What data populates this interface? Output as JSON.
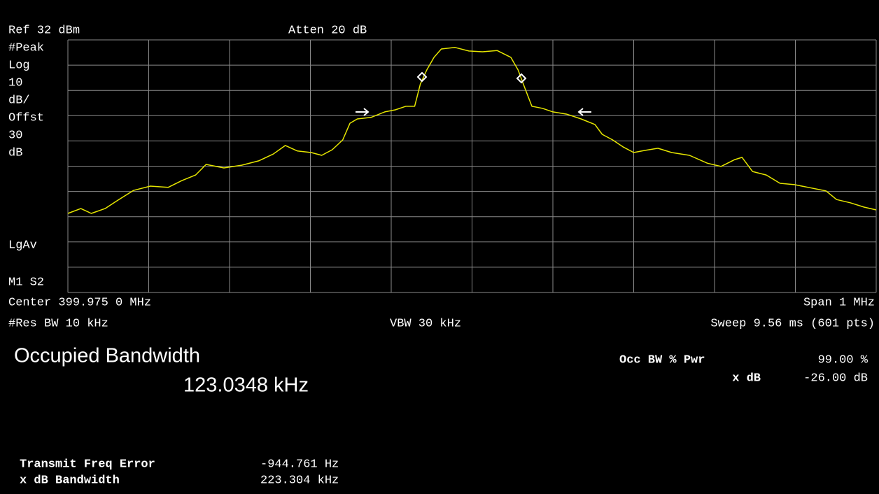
{
  "header": {
    "ref": "Ref 32 dBm",
    "atten": "Atten 20 dB"
  },
  "side_labels": [
    "#Peak",
    "Log",
    "10",
    "dB/",
    "Offst",
    "30",
    "dB"
  ],
  "detector": "LgAv",
  "marker_state": "M1  S2",
  "footer": {
    "center": "Center 399.975 0 MHz",
    "span": "Span 1 MHz",
    "res_bw": "#Res BW 10 kHz",
    "vbw": "VBW 30 kHz",
    "sweep": "Sweep 9.56 ms (601 pts)"
  },
  "measurement": {
    "title": "Occupied Bandwidth",
    "value": "123.0348 kHz",
    "settings": [
      {
        "label": "Occ BW % Pwr",
        "value": "99.00 %"
      },
      {
        "label": "x dB",
        "value": "-26.00 dB"
      }
    ],
    "results": [
      {
        "label": "Transmit Freq Error",
        "value": "-944.761 Hz"
      },
      {
        "label": "x dB Bandwidth",
        "value": "223.304 kHz"
      }
    ]
  },
  "chart_data": {
    "type": "line",
    "color": "#e6e600",
    "xlim": [
      399.475,
      400.475
    ],
    "ylim": [
      -68,
      32
    ],
    "x": [
      399.475,
      399.491,
      399.504,
      399.521,
      399.538,
      399.556,
      399.577,
      399.599,
      399.616,
      399.633,
      399.646,
      399.668,
      399.69,
      399.711,
      399.729,
      399.744,
      399.759,
      399.776,
      399.789,
      399.802,
      399.815,
      399.824,
      399.833,
      399.85,
      399.867,
      399.88,
      399.893,
      399.904,
      399.911,
      399.919,
      399.928,
      399.937,
      399.954,
      399.971,
      399.988,
      400.006,
      400.023,
      400.032,
      400.04,
      400.049,
      400.062,
      400.075,
      400.092,
      400.11,
      400.127,
      400.136,
      400.149,
      400.162,
      400.175,
      400.188,
      400.205,
      400.222,
      400.244,
      400.266,
      400.283,
      400.3,
      400.309,
      400.322,
      400.339,
      400.356,
      400.374,
      400.391,
      400.413,
      400.426,
      400.443,
      400.46,
      400.475
    ],
    "values": [
      -36.7,
      -34.8,
      -36.7,
      -34.8,
      -31.2,
      -27.6,
      -25.9,
      -26.4,
      -23.7,
      -21.5,
      -17.3,
      -18.7,
      -17.6,
      -15.9,
      -13.2,
      -9.8,
      -12.0,
      -12.6,
      -13.7,
      -11.5,
      -7.6,
      -1.0,
      0.7,
      1.3,
      3.5,
      4.3,
      5.7,
      5.7,
      14.5,
      20.1,
      25.1,
      28.4,
      29.0,
      27.6,
      27.3,
      27.8,
      25.1,
      20.1,
      13.2,
      5.7,
      4.9,
      3.5,
      2.6,
      0.7,
      -1.5,
      -5.4,
      -7.6,
      -10.4,
      -12.6,
      -11.8,
      -10.9,
      -12.6,
      -13.7,
      -16.8,
      -18.1,
      -15.4,
      -14.5,
      -20.1,
      -21.5,
      -24.8,
      -25.3,
      -26.4,
      -27.8,
      -31.2,
      -32.5,
      -34.2,
      -35.3
    ]
  }
}
